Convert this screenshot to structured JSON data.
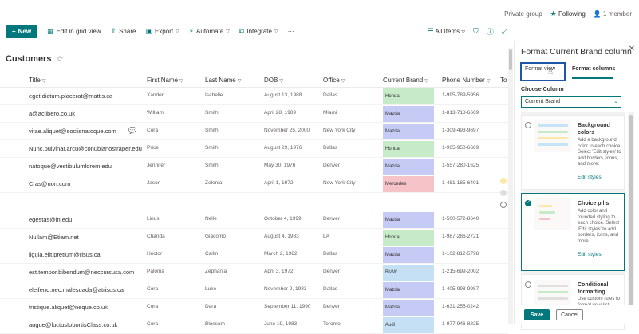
{
  "group": {
    "privacy": "Private group",
    "following": "Following",
    "members": "1 member"
  },
  "commandbar": {
    "new_label": "New",
    "grid_view": "Edit in grid view",
    "share": "Share",
    "export": "Export",
    "automate": "Automate",
    "integrate": "Integrate",
    "more": "···",
    "view_label": "All Items"
  },
  "list": {
    "title": "Customers"
  },
  "columns": [
    "Title",
    "First Name",
    "Last Name",
    "DOB",
    "Office",
    "Current Brand",
    "Phone Number",
    "To"
  ],
  "rows": [
    {
      "title": "eget.dictum.placerat@mattis.ca",
      "first": "Xander",
      "last": "Isabelle",
      "dob": "August 13, 1988",
      "office": "Dallas",
      "brand": "Honda",
      "phone": "1-995-789-5956"
    },
    {
      "title": "a@aclibero.co.uk",
      "first": "William",
      "last": "Smith",
      "dob": "April 28, 1989",
      "office": "Miami",
      "brand": "Mazda",
      "phone": "1-813-718-6669"
    },
    {
      "title": "vitae.aliquet@sociisnatoque.com",
      "first": "Cora",
      "last": "Smith",
      "dob": "November 25, 2000",
      "office": "New York City",
      "brand": "Mazda",
      "phone": "1-309-493-9697"
    },
    {
      "title": "Nunc.pulvinar.arcu@conubianostraper.edu",
      "first": "Price",
      "last": "Smith",
      "dob": "August 29, 1976",
      "office": "Dallas",
      "brand": "Honda",
      "phone": "1-965-950-6669"
    },
    {
      "title": "natoque@vestibulumlorem.edu",
      "first": "Jennifer",
      "last": "Smith",
      "dob": "May 30, 1976",
      "office": "Denver",
      "brand": "Mazda",
      "phone": "1-557-280-1625"
    },
    {
      "title": "Cras@non.com",
      "first": "Jason",
      "last": "Zelenia",
      "dob": "April 1, 1972",
      "office": "New York City",
      "brand": "Mercedes",
      "phone": "1-481-185-6401"
    },
    {
      "title": "egestas@in.edu",
      "first": "Linus",
      "last": "Nelle",
      "dob": "October 4, 1999",
      "office": "Denver",
      "brand": "Mazda",
      "phone": "1-500-572-8640"
    },
    {
      "title": "Nullam@Etiam.net",
      "first": "Chanda",
      "last": "Giacomo",
      "dob": "August 4, 1983",
      "office": "LA",
      "brand": "Honda",
      "phone": "1-987-286-2721"
    },
    {
      "title": "ligula.elit.pretium@risus.ca",
      "first": "Hector",
      "last": "Cailin",
      "dob": "March 2, 1982",
      "office": "Dallas",
      "brand": "Mazda",
      "phone": "1-102-812-5798"
    },
    {
      "title": "est.tempor.bibendum@neccursusa.com",
      "first": "Paloma",
      "last": "Zephania",
      "dob": "April 3, 1972",
      "office": "Denver",
      "brand": "BMW",
      "phone": "1-215-699-2002"
    },
    {
      "title": "eleifend.nec.malesuada@atrisus.ca",
      "first": "Cora",
      "last": "Luke",
      "dob": "November 2, 1983",
      "office": "Dallas",
      "brand": "Mazda",
      "phone": "1-405-998-9987"
    },
    {
      "title": "tristique.aliquet@neque.co.uk",
      "first": "Cora",
      "last": "Dara",
      "dob": "September 11, 1990",
      "office": "Denver",
      "brand": "Mazda",
      "phone": "1-631-255-0242"
    },
    {
      "title": "augue@luctusIobortisClass.co.uk",
      "first": "Cora",
      "last": "Blossom",
      "dob": "June 19, 1983",
      "office": "Toronto",
      "brand": "Audi",
      "phone": "1-977-946-8825"
    }
  ],
  "brand_colors": {
    "Honda": "#c7eac9",
    "Mazda": "#c6cbf5",
    "Mercedes": "#f6c3c8",
    "BMW": "#c5e0f4",
    "Audi": "#c5e0f4"
  },
  "panel": {
    "title": "Format Current Brand column",
    "tab_view": "Format view",
    "tab_columns": "Format columns",
    "choose_label": "Choose Column",
    "choose_value": "Current Brand",
    "options": [
      {
        "name": "Background colors",
        "desc": "Add a background color to each choice. Select 'Edit styles' to add borders, icons, and more.",
        "edit": "Edit styles",
        "selected": false
      },
      {
        "name": "Choice pills",
        "desc": "Add color and rounded styling to each choice. Select 'Edit styles' to add borders, icons, and more.",
        "edit": "Edit styles",
        "selected": true
      },
      {
        "name": "Conditional formatting",
        "desc": "Use custom rules to format your list",
        "edit": "",
        "selected": false
      }
    ],
    "save": "Save",
    "cancel": "Cancel"
  }
}
